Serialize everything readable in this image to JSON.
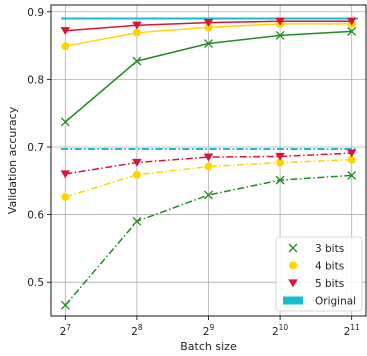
{
  "chart_data": {
    "type": "line",
    "xlabel": "Batch size",
    "ylabel": "Validation accuracy",
    "x": [
      7,
      8,
      9,
      10,
      11
    ],
    "x_tick_labels": [
      {
        "base": "2",
        "exp": "7"
      },
      {
        "base": "2",
        "exp": "8"
      },
      {
        "base": "2",
        "exp": "9"
      },
      {
        "base": "2",
        "exp": "10"
      },
      {
        "base": "2",
        "exp": "11"
      }
    ],
    "xlim": [
      6.8,
      11.2
    ],
    "ylim": [
      0.45,
      0.91
    ],
    "yticks": [
      "0.5",
      "0.6",
      "0.7",
      "0.8",
      "0.9"
    ],
    "grid": true,
    "legend_position": "lower right",
    "series": [
      {
        "name": "3 bits",
        "color": "#228B22",
        "marker": "x",
        "group": "upper",
        "values": [
          0.737,
          0.827,
          0.853,
          0.865,
          0.871
        ]
      },
      {
        "name": "4 bits",
        "color": "#FFD700",
        "marker": "circle",
        "group": "upper",
        "values": [
          0.849,
          0.869,
          0.877,
          0.882,
          0.882
        ]
      },
      {
        "name": "5 bits",
        "color": "#DC143C",
        "marker": "triangle-down",
        "group": "upper",
        "values": [
          0.872,
          0.88,
          0.884,
          0.886,
          0.886
        ]
      },
      {
        "name": "Original",
        "color": "#17BECF",
        "marker": "none",
        "group": "upper",
        "values": [
          0.89,
          0.89,
          0.89,
          0.89,
          0.89
        ]
      },
      {
        "name": "3 bits",
        "color": "#228B22",
        "marker": "x",
        "group": "lower",
        "values": [
          0.466,
          0.59,
          0.629,
          0.651,
          0.658
        ]
      },
      {
        "name": "4 bits",
        "color": "#FFD700",
        "marker": "circle",
        "group": "lower",
        "values": [
          0.626,
          0.659,
          0.671,
          0.677,
          0.681
        ]
      },
      {
        "name": "5 bits",
        "color": "#DC143C",
        "marker": "triangle-down",
        "group": "lower",
        "values": [
          0.66,
          0.677,
          0.685,
          0.686,
          0.691
        ]
      },
      {
        "name": "Original",
        "color": "#17BECF",
        "marker": "none",
        "group": "lower",
        "values": [
          0.697,
          0.697,
          0.697,
          0.697,
          0.697
        ]
      }
    ],
    "legend": [
      {
        "label": "3 bits",
        "color": "#228B22",
        "marker": "x"
      },
      {
        "label": "4 bits",
        "color": "#FFD700",
        "marker": "circle"
      },
      {
        "label": "5 bits",
        "color": "#DC143C",
        "marker": "triangle-down"
      },
      {
        "label": "Original",
        "color": "#17BECF",
        "marker": "patch"
      }
    ]
  }
}
